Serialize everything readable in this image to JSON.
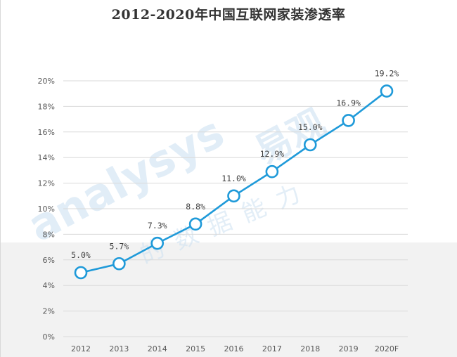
{
  "page": {
    "title": "2012-2020年中国互联网家装渗透率"
  },
  "watermark": {
    "english": "analysys",
    "chinese_main": "易观",
    "chinese_sub": "的数据能力",
    "color": "#c9dff1"
  },
  "chart_data": {
    "type": "line",
    "title": "2012-2020年中国互联网家装渗透率",
    "xlabel": "",
    "ylabel": "",
    "categories": [
      "2012",
      "2013",
      "2014",
      "2015",
      "2016",
      "2017",
      "2018",
      "2019",
      "2020F"
    ],
    "series": [
      {
        "values": [
          5.0,
          5.7,
          7.3,
          8.8,
          11.0,
          12.9,
          15.0,
          16.9,
          19.2
        ],
        "labels": [
          "5.0%",
          "5.7%",
          "7.3%",
          "8.8%",
          "11.0%",
          "12.9%",
          "15.0%",
          "16.9%",
          "19.2%"
        ]
      }
    ],
    "ylim": [
      0,
      20
    ],
    "yticks": [
      0,
      2,
      4,
      6,
      8,
      10,
      12,
      14,
      16,
      18,
      20
    ],
    "ytick_labels": [
      "0%",
      "2%",
      "4%",
      "6%",
      "8%",
      "10%",
      "12%",
      "14%",
      "16%",
      "18%",
      "20%"
    ],
    "grid": true,
    "legend": "none",
    "line_color": "#1f9ad9",
    "marker_fill": "#ffffff",
    "grid_color": "#d9d9d9"
  }
}
